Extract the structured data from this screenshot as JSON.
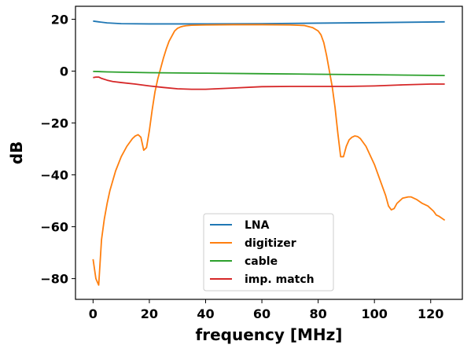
{
  "chart_data": {
    "type": "line",
    "title": "",
    "xlabel": "frequency [MHz]",
    "ylabel": "dB",
    "xlim": [
      -6.25,
      131.25
    ],
    "ylim": [
      -88,
      25
    ],
    "xticks": [
      0,
      20,
      40,
      60,
      80,
      100,
      120
    ],
    "yticks": [
      -80,
      -60,
      -40,
      -20,
      0,
      20
    ],
    "grid": false,
    "legend_position": "lower-center",
    "series": [
      {
        "name": "LNA",
        "color": "#1f77b4",
        "x": [
          0,
          2,
          5,
          10,
          20,
          40,
          60,
          80,
          100,
          125
        ],
        "y": [
          19.3,
          19.0,
          18.6,
          18.3,
          18.2,
          18.2,
          18.3,
          18.5,
          18.7,
          19.0
        ]
      },
      {
        "name": "digitizer",
        "color": "#ff7f0e",
        "x": [
          0,
          1,
          2,
          3,
          4,
          5,
          6,
          8,
          10,
          12,
          14,
          15,
          16,
          17,
          18,
          19,
          20,
          21,
          22,
          23,
          24,
          25,
          26,
          27,
          28,
          29,
          30,
          31,
          32,
          33,
          35,
          40,
          50,
          60,
          70,
          75,
          78,
          80,
          81,
          82,
          83,
          84,
          85,
          86,
          87,
          88,
          89,
          90,
          91,
          92,
          93,
          94,
          95,
          97,
          100,
          102,
          104,
          105,
          106,
          107,
          108,
          110,
          112,
          113,
          115,
          117,
          119,
          121,
          122,
          123,
          125
        ],
        "y": [
          -72.5,
          -80,
          -82.5,
          -65,
          -57,
          -51,
          -46,
          -38.5,
          -33,
          -29,
          -26,
          -25,
          -24.5,
          -25.5,
          -30.5,
          -29.5,
          -23,
          -15,
          -8,
          -3,
          1,
          5,
          8.5,
          11.5,
          13.5,
          15.5,
          16.5,
          17,
          17.3,
          17.5,
          17.7,
          17.8,
          17.9,
          17.9,
          17.8,
          17.6,
          16.8,
          15.5,
          14,
          11,
          6,
          0,
          -6,
          -14,
          -24,
          -33,
          -33,
          -29,
          -26.5,
          -25.5,
          -25,
          -25.2,
          -26,
          -29,
          -36,
          -42,
          -48,
          -52,
          -53.5,
          -53,
          -51,
          -49,
          -48.5,
          -48.5,
          -49.5,
          -51,
          -52,
          -54,
          -55.5,
          -56,
          -57.5
        ]
      },
      {
        "name": "cable",
        "color": "#2ca02c",
        "x": [
          0,
          5,
          10,
          20,
          40,
          60,
          80,
          100,
          125
        ],
        "y": [
          -0.1,
          -0.3,
          -0.4,
          -0.6,
          -0.8,
          -1.0,
          -1.2,
          -1.4,
          -1.7
        ]
      },
      {
        "name": "imp. match",
        "color": "#d62728",
        "x": [
          0,
          1,
          2,
          3,
          5,
          7,
          10,
          15,
          20,
          25,
          30,
          35,
          40,
          50,
          60,
          70,
          80,
          90,
          100,
          110,
          120,
          125
        ],
        "y": [
          -2.5,
          -2.3,
          -2.3,
          -2.8,
          -3.5,
          -4.0,
          -4.4,
          -5.0,
          -5.7,
          -6.3,
          -6.8,
          -7.0,
          -7.0,
          -6.5,
          -6.0,
          -5.9,
          -5.9,
          -5.9,
          -5.7,
          -5.3,
          -5.0,
          -5.0
        ]
      }
    ]
  }
}
